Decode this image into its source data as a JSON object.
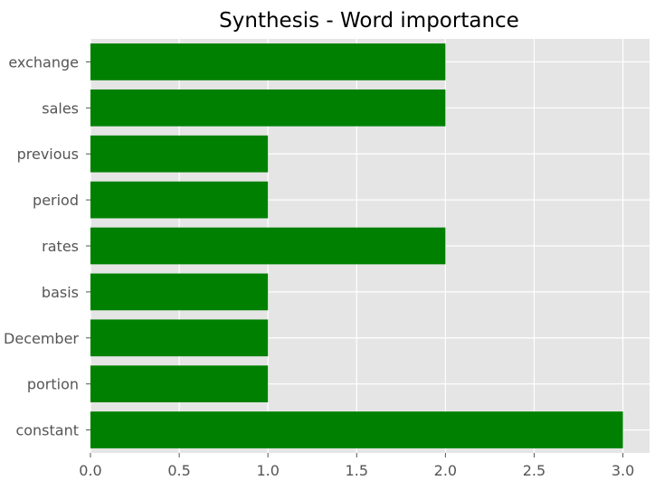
{
  "chart_data": {
    "type": "bar",
    "orientation": "horizontal",
    "title": "Synthesis - Word importance",
    "xlabel": "",
    "ylabel": "",
    "categories": [
      "exchange",
      "sales",
      "previous",
      "period",
      "rates",
      "basis",
      "December",
      "portion",
      "constant"
    ],
    "values": [
      2,
      2,
      1,
      1,
      2,
      1,
      1,
      1,
      3
    ],
    "xlim": [
      0,
      3.15
    ],
    "xticks": [
      "0.0",
      "0.5",
      "1.0",
      "1.5",
      "2.0",
      "2.5",
      "3.0"
    ],
    "grid": true,
    "legend": "none",
    "bar_color": "#008000",
    "plot_background": "#e5e5e5",
    "grid_color": "#ffffff"
  }
}
